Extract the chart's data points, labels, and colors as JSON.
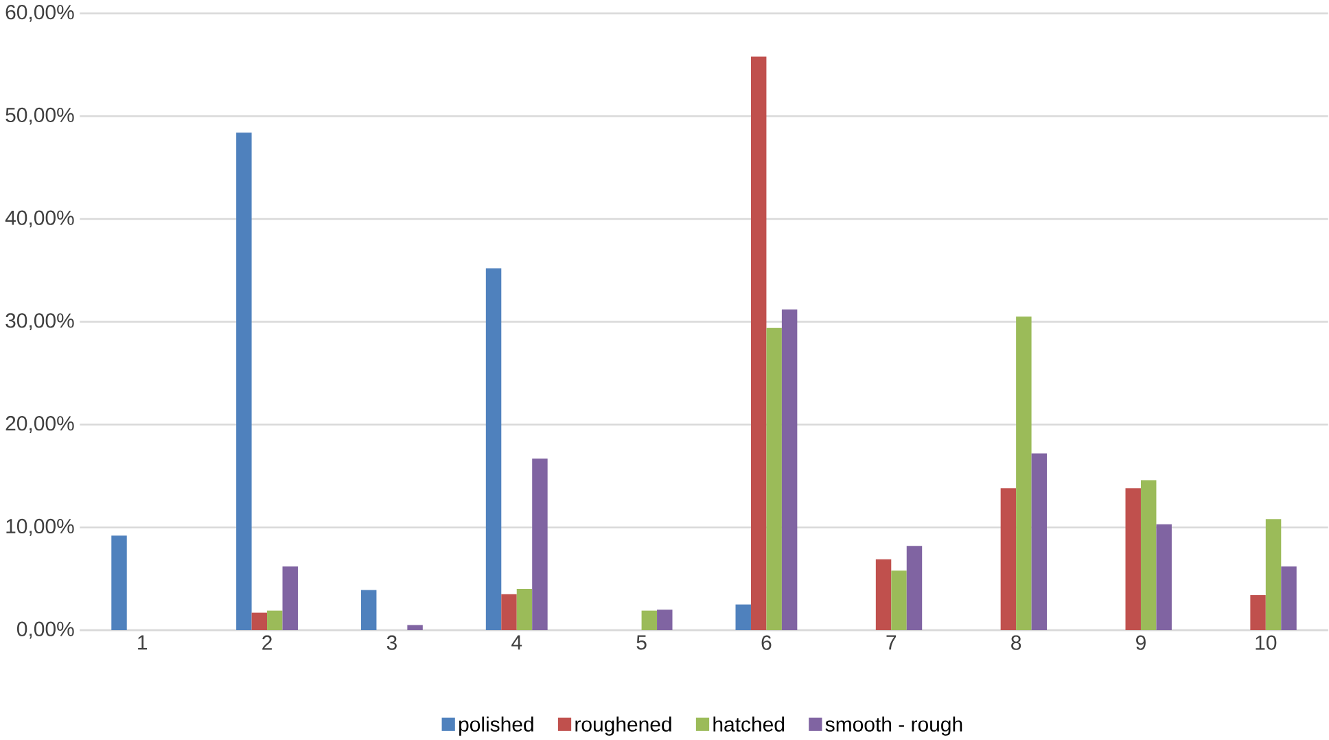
{
  "chart_data": {
    "type": "bar",
    "categories": [
      "1",
      "2",
      "3",
      "4",
      "5",
      "6",
      "7",
      "8",
      "9",
      "10"
    ],
    "series": [
      {
        "name": "polished",
        "color": "#4f81bd",
        "values": [
          9.2,
          48.4,
          3.9,
          35.2,
          0,
          2.5,
          0,
          0,
          0,
          0
        ]
      },
      {
        "name": "roughened",
        "color": "#c0504d",
        "values": [
          0,
          1.7,
          0,
          3.5,
          0,
          55.8,
          6.9,
          13.8,
          13.8,
          3.4
        ]
      },
      {
        "name": "hatched",
        "color": "#9bbb59",
        "values": [
          0,
          1.9,
          0,
          4.0,
          1.9,
          29.4,
          5.8,
          30.5,
          14.6,
          10.8
        ]
      },
      {
        "name": "smooth - rough",
        "color": "#8064a2",
        "values": [
          0,
          6.2,
          0.5,
          16.7,
          2.0,
          31.2,
          8.2,
          17.2,
          10.3,
          6.2
        ]
      }
    ],
    "ylim": [
      0,
      60
    ],
    "yticks": [
      {
        "value": 0,
        "label": "0,00%"
      },
      {
        "value": 10,
        "label": "10,00%"
      },
      {
        "value": 20,
        "label": "20,00%"
      },
      {
        "value": 30,
        "label": "30,00%"
      },
      {
        "value": 40,
        "label": "40,00%"
      },
      {
        "value": 50,
        "label": "50,00%"
      },
      {
        "value": 60,
        "label": "60,00%"
      }
    ],
    "grid": "y",
    "legend": "bottom"
  }
}
